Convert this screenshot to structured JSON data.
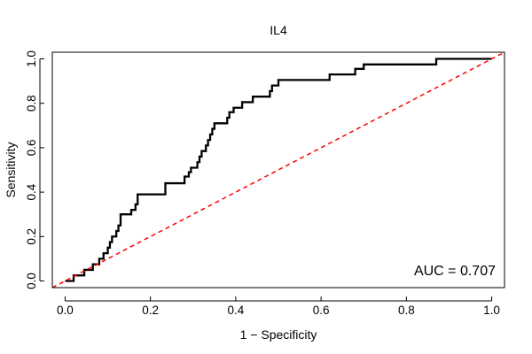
{
  "chart_data": {
    "type": "line",
    "title": "IL4",
    "xlabel": "1 − Specificity",
    "ylabel": "Sensitivity",
    "xlim": [
      -0.03,
      1.03
    ],
    "ylim": [
      -0.03,
      1.03
    ],
    "x_ticks": [
      0.0,
      0.2,
      0.4,
      0.6,
      0.8,
      1.0
    ],
    "x_tick_labels": [
      "0.0",
      "0.2",
      "0.4",
      "0.6",
      "0.8",
      "1.0"
    ],
    "y_ticks": [
      0.0,
      0.2,
      0.4,
      0.6,
      0.8,
      1.0
    ],
    "y_tick_labels": [
      "0.0",
      "0.2",
      "0.4",
      "0.6",
      "0.8",
      "1.0"
    ],
    "grid": false,
    "annotation": "AUC = 0.707",
    "series": [
      {
        "name": "ROC curve",
        "color": "#000000",
        "style": "solid",
        "points": [
          [
            0.0,
            0.0
          ],
          [
            0.02,
            0.0
          ],
          [
            0.02,
            0.025
          ],
          [
            0.045,
            0.025
          ],
          [
            0.045,
            0.05
          ],
          [
            0.065,
            0.05
          ],
          [
            0.065,
            0.075
          ],
          [
            0.08,
            0.075
          ],
          [
            0.08,
            0.1
          ],
          [
            0.09,
            0.1
          ],
          [
            0.09,
            0.125
          ],
          [
            0.1,
            0.125
          ],
          [
            0.1,
            0.15
          ],
          [
            0.105,
            0.15
          ],
          [
            0.105,
            0.175
          ],
          [
            0.11,
            0.175
          ],
          [
            0.11,
            0.2
          ],
          [
            0.12,
            0.2
          ],
          [
            0.12,
            0.225
          ],
          [
            0.125,
            0.225
          ],
          [
            0.125,
            0.25
          ],
          [
            0.13,
            0.25
          ],
          [
            0.13,
            0.3
          ],
          [
            0.155,
            0.3
          ],
          [
            0.155,
            0.32
          ],
          [
            0.165,
            0.32
          ],
          [
            0.165,
            0.345
          ],
          [
            0.17,
            0.345
          ],
          [
            0.17,
            0.39
          ],
          [
            0.235,
            0.39
          ],
          [
            0.235,
            0.44
          ],
          [
            0.28,
            0.44
          ],
          [
            0.28,
            0.47
          ],
          [
            0.29,
            0.47
          ],
          [
            0.29,
            0.49
          ],
          [
            0.295,
            0.49
          ],
          [
            0.295,
            0.51
          ],
          [
            0.31,
            0.51
          ],
          [
            0.31,
            0.535
          ],
          [
            0.315,
            0.535
          ],
          [
            0.315,
            0.56
          ],
          [
            0.32,
            0.56
          ],
          [
            0.32,
            0.585
          ],
          [
            0.33,
            0.585
          ],
          [
            0.33,
            0.61
          ],
          [
            0.335,
            0.61
          ],
          [
            0.335,
            0.635
          ],
          [
            0.34,
            0.635
          ],
          [
            0.34,
            0.66
          ],
          [
            0.345,
            0.66
          ],
          [
            0.345,
            0.685
          ],
          [
            0.35,
            0.685
          ],
          [
            0.35,
            0.71
          ],
          [
            0.38,
            0.71
          ],
          [
            0.38,
            0.735
          ],
          [
            0.385,
            0.735
          ],
          [
            0.385,
            0.76
          ],
          [
            0.395,
            0.76
          ],
          [
            0.395,
            0.78
          ],
          [
            0.415,
            0.78
          ],
          [
            0.415,
            0.805
          ],
          [
            0.44,
            0.805
          ],
          [
            0.44,
            0.83
          ],
          [
            0.48,
            0.83
          ],
          [
            0.48,
            0.855
          ],
          [
            0.485,
            0.855
          ],
          [
            0.485,
            0.88
          ],
          [
            0.5,
            0.88
          ],
          [
            0.5,
            0.905
          ],
          [
            0.62,
            0.905
          ],
          [
            0.62,
            0.93
          ],
          [
            0.68,
            0.93
          ],
          [
            0.68,
            0.955
          ],
          [
            0.7,
            0.955
          ],
          [
            0.7,
            0.975
          ],
          [
            0.87,
            0.975
          ],
          [
            0.87,
            1.0
          ],
          [
            1.0,
            1.0
          ]
        ]
      },
      {
        "name": "Reference line",
        "color": "#ff0000",
        "style": "dashed",
        "points": [
          [
            -0.03,
            -0.03
          ],
          [
            1.03,
            1.03
          ]
        ]
      }
    ]
  }
}
